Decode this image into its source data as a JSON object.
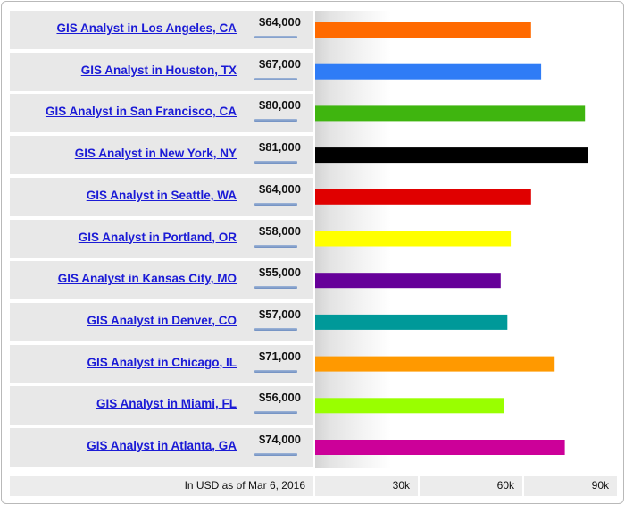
{
  "chart_data": {
    "type": "bar",
    "orientation": "horizontal",
    "categories": [
      "GIS Analyst in Los Angeles, CA",
      "GIS Analyst in Houston, TX",
      "GIS Analyst in San Francisco, CA",
      "GIS Analyst in New York, NY",
      "GIS Analyst in Seattle, WA",
      "GIS Analyst in Portland, OR",
      "GIS Analyst in Kansas City, MO",
      "GIS Analyst in Denver, CO",
      "GIS Analyst in Chicago, IL",
      "GIS Analyst in Miami, FL",
      "GIS Analyst in Atlanta, GA"
    ],
    "values": [
      64000,
      67000,
      80000,
      81000,
      64000,
      58000,
      55000,
      57000,
      71000,
      56000,
      74000
    ],
    "value_labels": [
      "$64,000",
      "$67,000",
      "$80,000",
      "$81,000",
      "$64,000",
      "$58,000",
      "$55,000",
      "$57,000",
      "$71,000",
      "$56,000",
      "$74,000"
    ],
    "colors": [
      "#ff6a00",
      "#2f7cf6",
      "#3fb50f",
      "#000000",
      "#e00000",
      "#ffff00",
      "#660099",
      "#009999",
      "#ff9900",
      "#99ff00",
      "#cc0099"
    ],
    "xlim": [
      0,
      90000
    ],
    "ticks": [
      {
        "value": 30000,
        "label": "30k"
      },
      {
        "value": 60000,
        "label": "60k"
      },
      {
        "value": 90000,
        "label": "90k"
      }
    ],
    "footnote": "In USD as of Mar 6, 2016",
    "grid": false,
    "legend": "none"
  }
}
